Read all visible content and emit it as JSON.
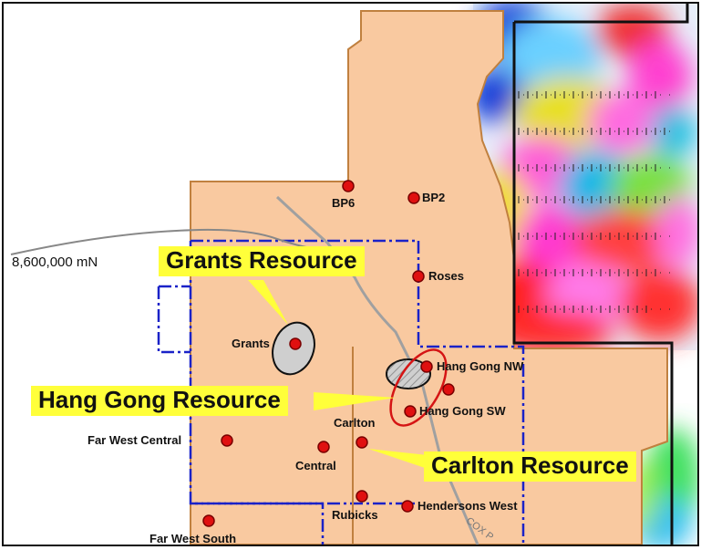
{
  "map": {
    "coordinate_label": "8,600,000 mN",
    "road_label": "COX P",
    "callouts": {
      "grants": "Grants Resource",
      "hang_gong": "Hang Gong Resource",
      "carlton": "Carlton Resource"
    },
    "prospects": {
      "bp6": "BP6",
      "bp2": "BP2",
      "roses": "Roses",
      "grants": "Grants",
      "hang_gong_nw": "Hang Gong NW",
      "hang_gong_sw": "Hang Gong SW",
      "carlton": "Carlton",
      "central": "Central",
      "far_west_central": "Far West Central",
      "rubicks": "Rubicks",
      "hendersons_west": "Hendersons West",
      "far_west_south": "Far West South"
    },
    "colors": {
      "tenement_fill": "#f9c9a0",
      "tenement_outline": "#c0803f",
      "boundary_blue": "#1a22c8",
      "prospect_dot": "#e01010",
      "callout_bg": "#ffff3a",
      "resource_outline_red": "#d51414"
    }
  }
}
